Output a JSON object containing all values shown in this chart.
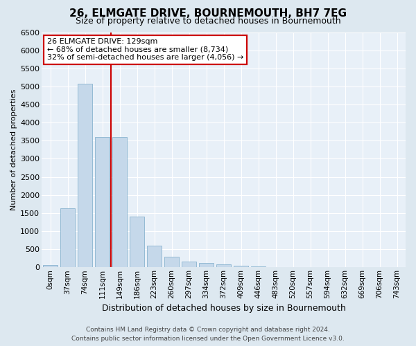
{
  "title": "26, ELMGATE DRIVE, BOURNEMOUTH, BH7 7EG",
  "subtitle": "Size of property relative to detached houses in Bournemouth",
  "xlabel": "Distribution of detached houses by size in Bournemouth",
  "ylabel": "Number of detached properties",
  "categories": [
    "0sqm",
    "37sqm",
    "74sqm",
    "111sqm",
    "149sqm",
    "186sqm",
    "223sqm",
    "260sqm",
    "297sqm",
    "334sqm",
    "372sqm",
    "409sqm",
    "446sqm",
    "483sqm",
    "520sqm",
    "557sqm",
    "594sqm",
    "632sqm",
    "669sqm",
    "706sqm",
    "743sqm"
  ],
  "bar_values": [
    60,
    1640,
    5080,
    3600,
    3600,
    1400,
    600,
    290,
    160,
    120,
    90,
    50,
    20,
    10,
    5,
    3,
    2,
    1,
    1,
    1,
    0
  ],
  "bar_color": "#c5d8ea",
  "bar_edge_color": "#7aaac8",
  "vline_color": "#cc0000",
  "ylim_max": 6500,
  "yticks": [
    0,
    500,
    1000,
    1500,
    2000,
    2500,
    3000,
    3500,
    4000,
    4500,
    5000,
    5500,
    6000,
    6500
  ],
  "annotation_line1": "26 ELMGATE DRIVE: 129sqm",
  "annotation_line2": "← 68% of detached houses are smaller (8,734)",
  "annotation_line3": "32% of semi-detached houses are larger (4,056) →",
  "annotation_box_facecolor": "#ffffff",
  "annotation_box_edgecolor": "#cc0000",
  "footer_line1": "Contains HM Land Registry data © Crown copyright and database right 2024.",
  "footer_line2": "Contains public sector information licensed under the Open Government Licence v3.0.",
  "fig_bg_color": "#dde8f0",
  "plot_bg_color": "#e8f0f8",
  "grid_color": "#ffffff",
  "title_fontsize": 11,
  "subtitle_fontsize": 9,
  "xlabel_fontsize": 9,
  "ylabel_fontsize": 8,
  "footer_fontsize": 6.5,
  "annot_fontsize": 8
}
